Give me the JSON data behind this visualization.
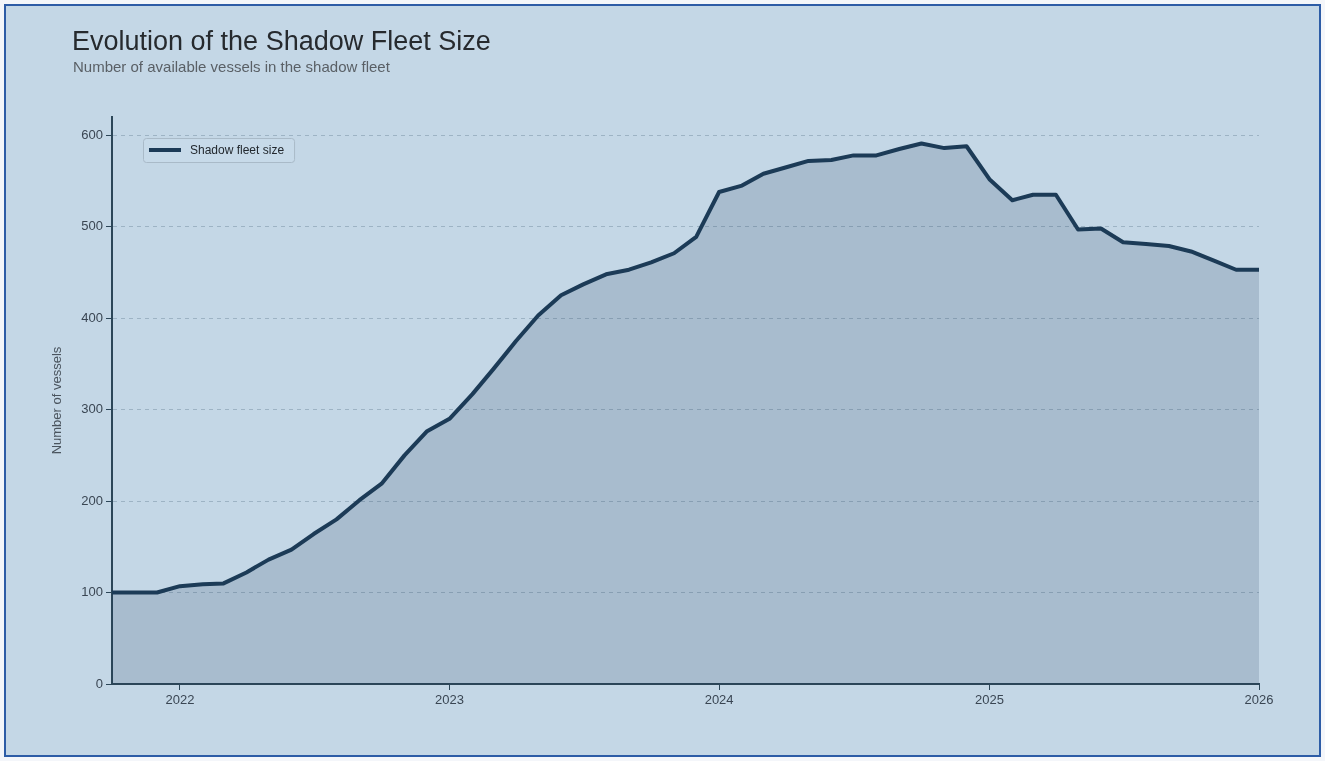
{
  "chart_data": {
    "type": "area",
    "title": "Evolution of the Shadow Fleet Size",
    "subtitle": "Number of available vessels in the shadow fleet",
    "ylabel": "Number of vessels",
    "x": [
      "2021-10",
      "2021-11",
      "2021-12",
      "2022-01",
      "2022-02",
      "2022-03",
      "2022-04",
      "2022-05",
      "2022-06",
      "2022-07",
      "2022-08",
      "2022-09",
      "2022-10",
      "2022-11",
      "2022-12",
      "2023-01",
      "2023-02",
      "2023-03",
      "2023-04",
      "2023-05",
      "2023-06",
      "2023-07",
      "2023-08",
      "2023-09",
      "2023-10",
      "2023-11",
      "2023-12",
      "2024-01",
      "2024-02",
      "2024-03",
      "2024-04",
      "2024-05",
      "2024-06",
      "2024-07",
      "2024-08",
      "2024-09",
      "2024-10",
      "2024-11",
      "2024-12",
      "2025-01",
      "2025-02",
      "2025-03",
      "2025-04",
      "2025-05",
      "2025-06",
      "2025-07",
      "2025-08",
      "2025-09",
      "2025-10",
      "2025-11",
      "2025-12",
      "2026-01"
    ],
    "series": [
      {
        "name": "Shadow fleet size",
        "color": "#1c3b57",
        "values": [
          100,
          100,
          100,
          107,
          109,
          110,
          122,
          136,
          147,
          164,
          180,
          201,
          219,
          250,
          276,
          290,
          317,
          344,
          375,
          403,
          425,
          437,
          448,
          453,
          461,
          471,
          489,
          538,
          545,
          558,
          565,
          572,
          573,
          578,
          578,
          585,
          591,
          586,
          588,
          552,
          529,
          535,
          535,
          497,
          498,
          483,
          481,
          479,
          473,
          463,
          453,
          453
        ]
      }
    ],
    "xlim": [
      "2021-10",
      "2026-01"
    ],
    "ylim": [
      0,
      620
    ],
    "xticks": [
      "2022",
      "2023",
      "2024",
      "2025",
      "2026"
    ],
    "yticks": [
      0,
      100,
      200,
      300,
      400,
      500,
      600
    ],
    "grid": "y",
    "legend": "top left"
  }
}
